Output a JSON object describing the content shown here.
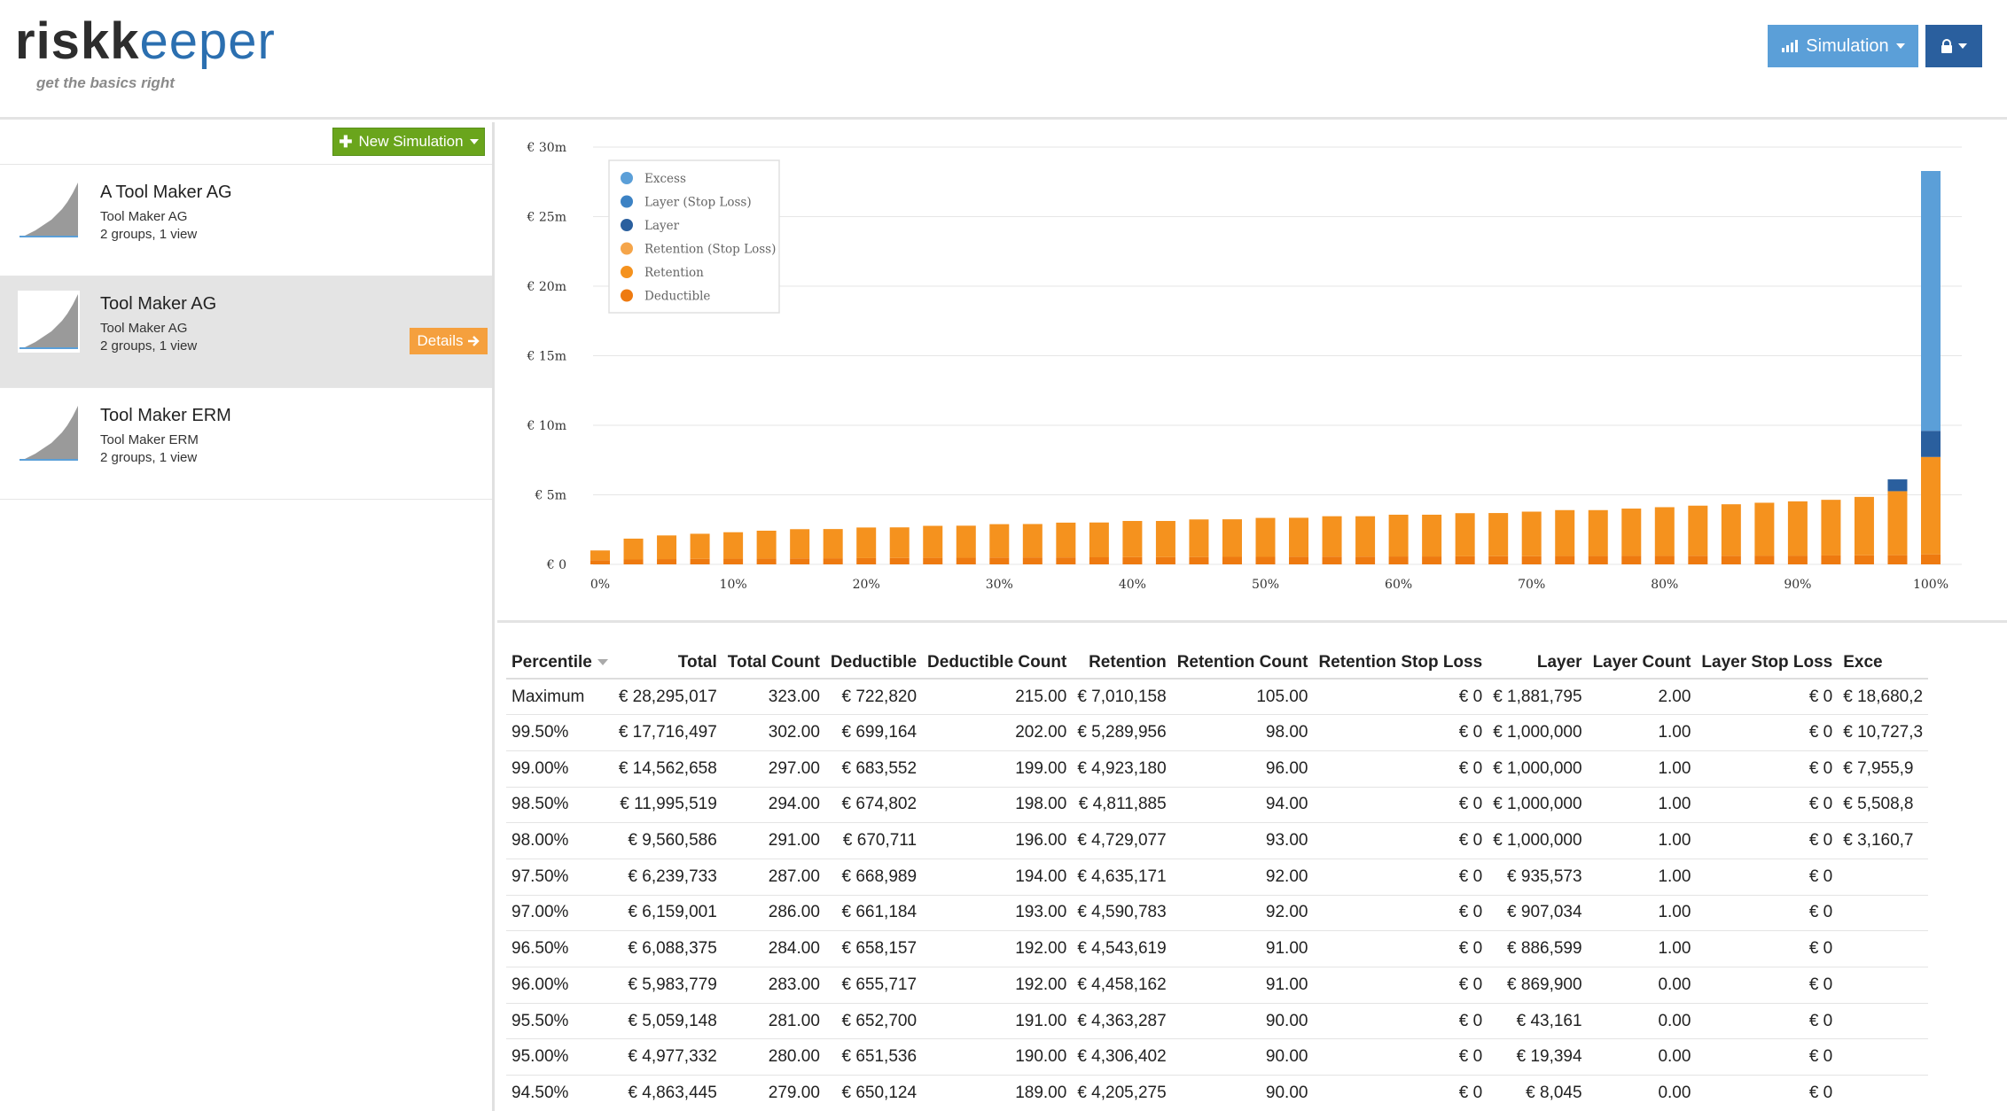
{
  "brand": {
    "logo_risk": "risk",
    "logo_keeper": "eeper",
    "logo_k": "k",
    "tagline": "get the basics right"
  },
  "header": {
    "simulation_label": "Simulation",
    "simulation_icon": "chart-bars-icon",
    "lock_icon": "lock-icon"
  },
  "sidebar": {
    "new_simulation_label": "New Simulation",
    "items": [
      {
        "title": "A Tool Maker AG",
        "subtitle": "Tool Maker AG",
        "meta": "2 groups, 1 view",
        "selected": false
      },
      {
        "title": "Tool Maker AG",
        "subtitle": "Tool Maker AG",
        "meta": "2 groups, 1 view",
        "selected": true,
        "details_label": "Details"
      },
      {
        "title": "Tool Maker ERM",
        "subtitle": "Tool Maker ERM",
        "meta": "2 groups, 1 view",
        "selected": false
      }
    ]
  },
  "chart_data": {
    "type": "bar",
    "stacked": true,
    "x_ticks": [
      "0%",
      "10%",
      "20%",
      "30%",
      "40%",
      "50%",
      "60%",
      "70%",
      "80%",
      "90%",
      "100%"
    ],
    "y_ticks": [
      "€ 0",
      "€ 5m",
      "€ 10m",
      "€ 15m",
      "€ 20m",
      "€ 25m",
      "€ 30m"
    ],
    "ylim": [
      0,
      30
    ],
    "y_unit": "m",
    "grid": true,
    "legend_position": "top-left",
    "legend": [
      {
        "name": "Excess",
        "color": "#5b9fd8"
      },
      {
        "name": "Layer (Stop Loss)",
        "color": "#3c82c4"
      },
      {
        "name": "Layer",
        "color": "#2a5f9e"
      },
      {
        "name": "Retention (Stop Loss)",
        "color": "#f5a54a"
      },
      {
        "name": "Retention",
        "color": "#f5921e"
      },
      {
        "name": "Deductible",
        "color": "#ee7a10"
      }
    ],
    "x": [
      0,
      2.5,
      5,
      7.5,
      10,
      12.5,
      15,
      17.5,
      20,
      22.5,
      25,
      27.5,
      30,
      32.5,
      35,
      37.5,
      40,
      42.5,
      45,
      47.5,
      50,
      52.5,
      55,
      57.5,
      60,
      62.5,
      65,
      67.5,
      70,
      72.5,
      75,
      77.5,
      80,
      82.5,
      85,
      87.5,
      90,
      92.5,
      95,
      97.5,
      100
    ],
    "series": [
      {
        "name": "Deductible",
        "values": [
          0.3,
          0.35,
          0.38,
          0.4,
          0.41,
          0.42,
          0.43,
          0.44,
          0.45,
          0.46,
          0.47,
          0.48,
          0.49,
          0.5,
          0.5,
          0.51,
          0.52,
          0.52,
          0.53,
          0.54,
          0.54,
          0.55,
          0.56,
          0.56,
          0.57,
          0.57,
          0.58,
          0.59,
          0.59,
          0.6,
          0.6,
          0.61,
          0.61,
          0.62,
          0.62,
          0.63,
          0.63,
          0.64,
          0.65,
          0.66,
          0.72
        ]
      },
      {
        "name": "Retention",
        "values": [
          0.7,
          1.5,
          1.7,
          1.8,
          1.9,
          2.0,
          2.1,
          2.1,
          2.2,
          2.2,
          2.3,
          2.3,
          2.4,
          2.4,
          2.5,
          2.5,
          2.6,
          2.6,
          2.7,
          2.7,
          2.8,
          2.8,
          2.9,
          2.9,
          3.0,
          3.0,
          3.1,
          3.1,
          3.2,
          3.3,
          3.3,
          3.4,
          3.5,
          3.6,
          3.7,
          3.8,
          3.9,
          4.0,
          4.2,
          4.6,
          7.0
        ]
      },
      {
        "name": "Layer",
        "values": [
          0,
          0,
          0,
          0,
          0,
          0,
          0,
          0,
          0,
          0,
          0,
          0,
          0,
          0,
          0,
          0,
          0,
          0,
          0,
          0,
          0,
          0,
          0,
          0,
          0,
          0,
          0,
          0,
          0,
          0,
          0,
          0,
          0,
          0,
          0,
          0,
          0,
          0,
          0,
          0.85,
          1.88
        ]
      },
      {
        "name": "Excess",
        "values": [
          0,
          0,
          0,
          0,
          0,
          0,
          0,
          0,
          0,
          0,
          0,
          0,
          0,
          0,
          0,
          0,
          0,
          0,
          0,
          0,
          0,
          0,
          0,
          0,
          0,
          0,
          0,
          0,
          0,
          0,
          0,
          0,
          0,
          0,
          0,
          0,
          0,
          0,
          0,
          0,
          18.68
        ]
      }
    ]
  },
  "table": {
    "columns": [
      "Percentile",
      "Total",
      "Total Count",
      "Deductible",
      "Deductible Count",
      "Retention",
      "Retention Count",
      "Retention Stop Loss",
      "Layer",
      "Layer Count",
      "Layer Stop Loss",
      "Exce"
    ],
    "rows": [
      [
        "Maximum",
        "€ 28,295,017",
        "323.00",
        "€ 722,820",
        "215.00",
        "€ 7,010,158",
        "105.00",
        "€ 0",
        "€ 1,881,795",
        "2.00",
        "€ 0",
        "€ 18,680,2"
      ],
      [
        "99.50%",
        "€ 17,716,497",
        "302.00",
        "€ 699,164",
        "202.00",
        "€ 5,289,956",
        "98.00",
        "€ 0",
        "€ 1,000,000",
        "1.00",
        "€ 0",
        "€ 10,727,3"
      ],
      [
        "99.00%",
        "€ 14,562,658",
        "297.00",
        "€ 683,552",
        "199.00",
        "€ 4,923,180",
        "96.00",
        "€ 0",
        "€ 1,000,000",
        "1.00",
        "€ 0",
        "€ 7,955,9"
      ],
      [
        "98.50%",
        "€ 11,995,519",
        "294.00",
        "€ 674,802",
        "198.00",
        "€ 4,811,885",
        "94.00",
        "€ 0",
        "€ 1,000,000",
        "1.00",
        "€ 0",
        "€ 5,508,8"
      ],
      [
        "98.00%",
        "€ 9,560,586",
        "291.00",
        "€ 670,711",
        "196.00",
        "€ 4,729,077",
        "93.00",
        "€ 0",
        "€ 1,000,000",
        "1.00",
        "€ 0",
        "€ 3,160,7"
      ],
      [
        "97.50%",
        "€ 6,239,733",
        "287.00",
        "€ 668,989",
        "194.00",
        "€ 4,635,171",
        "92.00",
        "€ 0",
        "€ 935,573",
        "1.00",
        "€ 0",
        ""
      ],
      [
        "97.00%",
        "€ 6,159,001",
        "286.00",
        "€ 661,184",
        "193.00",
        "€ 4,590,783",
        "92.00",
        "€ 0",
        "€ 907,034",
        "1.00",
        "€ 0",
        ""
      ],
      [
        "96.50%",
        "€ 6,088,375",
        "284.00",
        "€ 658,157",
        "192.00",
        "€ 4,543,619",
        "91.00",
        "€ 0",
        "€ 886,599",
        "1.00",
        "€ 0",
        ""
      ],
      [
        "96.00%",
        "€ 5,983,779",
        "283.00",
        "€ 655,717",
        "192.00",
        "€ 4,458,162",
        "91.00",
        "€ 0",
        "€ 869,900",
        "0.00",
        "€ 0",
        ""
      ],
      [
        "95.50%",
        "€ 5,059,148",
        "281.00",
        "€ 652,700",
        "191.00",
        "€ 4,363,287",
        "90.00",
        "€ 0",
        "€ 43,161",
        "0.00",
        "€ 0",
        ""
      ],
      [
        "95.00%",
        "€ 4,977,332",
        "280.00",
        "€ 651,536",
        "190.00",
        "€ 4,306,402",
        "90.00",
        "€ 0",
        "€ 19,394",
        "0.00",
        "€ 0",
        ""
      ],
      [
        "94.50%",
        "€ 4,863,445",
        "279.00",
        "€ 650,124",
        "189.00",
        "€ 4,205,275",
        "90.00",
        "€ 0",
        "€ 8,045",
        "0.00",
        "€ 0",
        ""
      ]
    ]
  }
}
